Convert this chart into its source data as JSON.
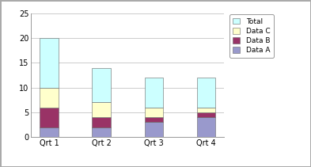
{
  "categories": [
    "Qrt 1",
    "Qrt 2",
    "Qrt 3",
    "Qrt 4"
  ],
  "series": {
    "Data A": [
      2,
      2,
      3,
      4
    ],
    "Data B": [
      4,
      2,
      1,
      1
    ],
    "Data C": [
      4,
      3,
      2,
      1
    ],
    "Total": [
      10,
      7,
      6,
      6
    ]
  },
  "colors": {
    "Data A": "#9999CC",
    "Data B": "#993366",
    "Data C": "#FFFFCC",
    "Total": "#CCFFFF"
  },
  "legend_order": [
    "Total",
    "Data C",
    "Data B",
    "Data A"
  ],
  "ylim": [
    0,
    25
  ],
  "yticks": [
    0,
    5,
    10,
    15,
    20,
    25
  ],
  "bar_width": 0.35,
  "background_color": "#FFFFFF",
  "plot_bg_color": "#FFFFFF",
  "grid_color": "#CCCCCC",
  "outer_border_color": "#AAAAAA",
  "figsize": [
    3.93,
    2.11
  ],
  "dpi": 100
}
